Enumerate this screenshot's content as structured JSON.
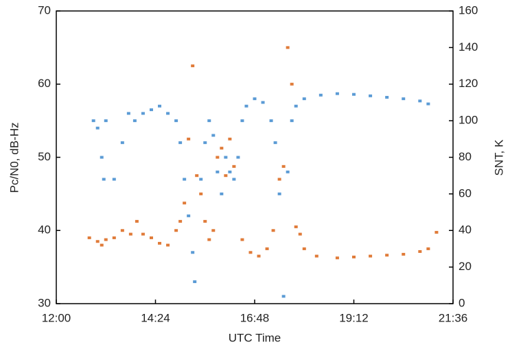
{
  "chart_data": {
    "type": "scatter",
    "x_label": "UTC Time",
    "y_label": "Pc/N0, dB-Hz",
    "y2_label": "SNT, K",
    "xlim": [
      12,
      21.6
    ],
    "xticks": [
      {
        "value": 12,
        "label": "12:00"
      },
      {
        "value": 14.4,
        "label": "14:24"
      },
      {
        "value": 16.8,
        "label": "16:48"
      },
      {
        "value": 19.2,
        "label": "19:12"
      },
      {
        "value": 21.6,
        "label": "21:36"
      }
    ],
    "ylim": [
      30,
      70
    ],
    "yticks": [
      30,
      40,
      50,
      60,
      70
    ],
    "y2lim": [
      0,
      160
    ],
    "y2ticks": [
      0,
      20,
      40,
      60,
      80,
      100,
      120,
      140,
      160
    ],
    "series": [
      {
        "color": "#5b9bd5",
        "x": [
          12.9,
          13.0,
          13.1,
          13.15,
          13.2,
          13.4,
          13.6,
          13.75,
          13.9,
          14.1,
          14.3,
          14.5,
          14.7,
          14.9,
          15.0,
          15.1,
          15.2,
          15.3,
          15.35,
          15.5,
          15.6,
          15.7,
          15.8,
          15.9,
          16.0,
          16.1,
          16.2,
          16.3,
          16.4,
          16.5,
          16.6,
          16.8,
          17.0,
          17.2,
          17.3,
          17.4,
          17.5,
          17.6,
          17.7,
          17.8,
          18.0,
          18.4,
          18.8,
          19.2,
          19.6,
          20.0,
          20.4,
          20.8,
          21.0
        ],
        "values": [
          55,
          54,
          50,
          47,
          55,
          47,
          52,
          56,
          55,
          56,
          56.5,
          57,
          56,
          55,
          52,
          47,
          42,
          37,
          33,
          47,
          52,
          55,
          53,
          48,
          45,
          50,
          48,
          47,
          50,
          55,
          57,
          58,
          57.5,
          55,
          52,
          45,
          31,
          48,
          55,
          57,
          58,
          58.5,
          58.7,
          58.6,
          58.4,
          58.2,
          58,
          57.7,
          57.3
        ]
      },
      {
        "color": "#e07b39",
        "axis": "y2",
        "x": [
          12.8,
          13.0,
          13.1,
          13.2,
          13.4,
          13.6,
          13.8,
          13.95,
          14.1,
          14.3,
          14.5,
          14.7,
          14.9,
          15.0,
          15.1,
          15.2,
          15.3,
          15.4,
          15.5,
          15.6,
          15.7,
          15.8,
          15.9,
          16.0,
          16.1,
          16.2,
          16.3,
          16.5,
          16.7,
          16.9,
          17.1,
          17.25,
          17.4,
          17.5,
          17.6,
          17.7,
          17.8,
          17.9,
          18.0,
          18.3,
          18.8,
          19.2,
          19.6,
          20.0,
          20.4,
          20.8,
          21.0,
          21.2
        ],
        "values": [
          36,
          34,
          32,
          35,
          36,
          40,
          38,
          45,
          38,
          36,
          33,
          32,
          40,
          45,
          55,
          90,
          130,
          70,
          60,
          45,
          35,
          40,
          80,
          85,
          70,
          90,
          75,
          35,
          28,
          26,
          30,
          40,
          68,
          75,
          140,
          120,
          42,
          38,
          30,
          26,
          25,
          25.5,
          26,
          26.5,
          27,
          28.5,
          30,
          39
        ]
      }
    ]
  }
}
